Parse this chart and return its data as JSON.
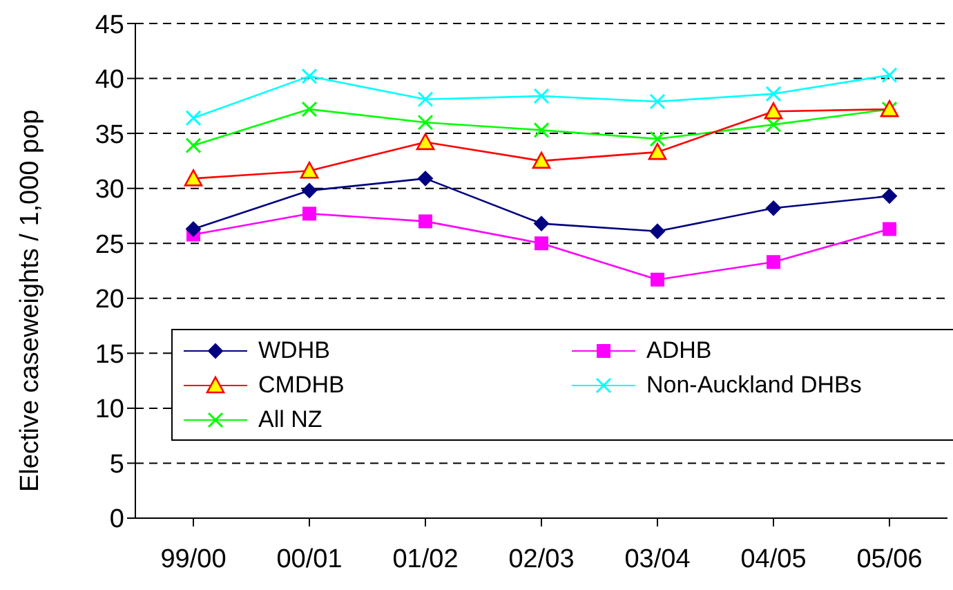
{
  "chart_data": {
    "type": "line",
    "ylabel": "Elective caseweights / 1,000 pop",
    "categories": [
      "99/00",
      "00/01",
      "01/02",
      "02/03",
      "03/04",
      "04/05",
      "05/06"
    ],
    "ylim": [
      0,
      45
    ],
    "yticks": [
      0,
      5,
      10,
      15,
      20,
      25,
      30,
      35,
      40,
      45
    ],
    "grid": "y",
    "legend": "left",
    "series": [
      {
        "name": "WDHB",
        "color": "#000080",
        "marker": "diamond",
        "values": [
          26.3,
          29.8,
          30.9,
          26.8,
          26.1,
          28.2,
          29.3
        ]
      },
      {
        "name": "ADHB",
        "color": "#ff00ff",
        "marker": "square",
        "values": [
          25.8,
          27.7,
          27.0,
          25.0,
          21.7,
          23.3,
          26.3
        ]
      },
      {
        "name": "CMDHB",
        "color": "#ff0000",
        "marker": "triangle",
        "values": [
          30.9,
          31.6,
          34.2,
          32.5,
          33.3,
          37.0,
          37.2
        ]
      },
      {
        "name": "Non-Auckland DHBs",
        "color": "#00ffff",
        "marker": "cross",
        "values": [
          36.4,
          40.2,
          38.1,
          38.4,
          37.9,
          38.6,
          40.3
        ]
      },
      {
        "name": "All NZ",
        "color": "#00ff00",
        "marker": "cross",
        "values": [
          33.9,
          37.2,
          36.0,
          35.3,
          34.5,
          35.8,
          37.2
        ]
      }
    ]
  }
}
